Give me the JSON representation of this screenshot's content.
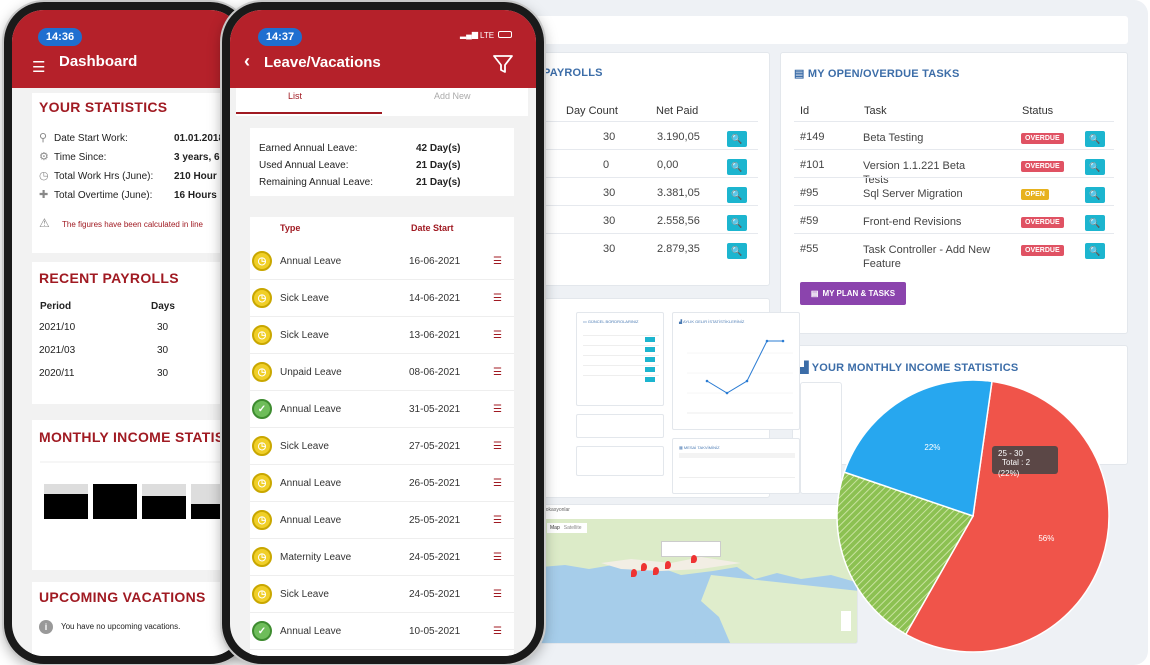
{
  "desktop": {
    "payrolls": {
      "title": "PAYROLLS",
      "headers": [
        "Day Count",
        "Net Paid"
      ],
      "rows": [
        {
          "days": "30",
          "paid": "3.190,05"
        },
        {
          "days": "0",
          "paid": "0,00"
        },
        {
          "days": "30",
          "paid": "3.381,05"
        },
        {
          "days": "30",
          "paid": "2.558,56"
        },
        {
          "days": "30",
          "paid": "2.879,35"
        }
      ]
    },
    "tasks": {
      "title": "MY OPEN/OVERDUE TASKS",
      "headers": [
        "Id",
        "Task",
        "Status"
      ],
      "rows": [
        {
          "id": "#149",
          "task": "Beta Testing",
          "status": "OVERDUE"
        },
        {
          "id": "#101",
          "task": "Version 1.1.221 Beta Tests",
          "status": "OVERDUE"
        },
        {
          "id": "#95",
          "task": "Sql Server Migration",
          "status": "OPEN"
        },
        {
          "id": "#59",
          "task": "Front-end Revisions",
          "status": "OVERDUE"
        },
        {
          "id": "#55",
          "task": "Task Controller - Add New Feature",
          "status": "OVERDUE"
        }
      ],
      "plan_button": "MY PLAN & TASKS"
    },
    "income": {
      "title": "YOUR MONTHLY INCOME STATISTICS",
      "tooltip_range": "25 - 30",
      "tooltip_total": "Total : 2",
      "tooltip_pct": "(22%)"
    },
    "map_label": "Lokasyonlar",
    "map_tabs": [
      "Map",
      "Satellite"
    ],
    "colors": {
      "accent": "#3c6da8",
      "zoom": "#1cb5cf",
      "overdue": "#e05263",
      "open": "#e7b21e",
      "plan": "#8b44ad"
    }
  },
  "chart_data": {
    "type": "pie",
    "title": "",
    "slices": [
      {
        "label": "56%",
        "value": 56,
        "color": "#f0544a"
      },
      {
        "label": "",
        "value": 22,
        "color": "#8cc152"
      },
      {
        "label": "22%",
        "value": 22,
        "color": "#27a7ef"
      }
    ]
  },
  "phone1": {
    "time": "14:36",
    "title": "Dashboard",
    "stats_title": "YOUR STATISTICS",
    "stats": [
      {
        "label": "Date Start Work:",
        "value": "01.01.2018"
      },
      {
        "label": "Time Since:",
        "value": "3 years, 6"
      },
      {
        "label": "Total Work Hrs (June):",
        "value": "210 Hour"
      },
      {
        "label": "Total Overtime (June):",
        "value": "16 Hours"
      }
    ],
    "note": "The figures have been calculated in line",
    "payrolls_title": "RECENT PAYROLLS",
    "payroll_headers": [
      "Period",
      "Days"
    ],
    "payrolls": [
      {
        "period": "2021/10",
        "days": "30"
      },
      {
        "period": "2021/03",
        "days": "30"
      },
      {
        "period": "2020/11",
        "days": "30"
      }
    ],
    "income_title": "MONTHLY INCOME STATIS",
    "vacations_title": "UPCOMING VACATIONS",
    "vacations_note": "You have no upcoming vacations."
  },
  "phone2": {
    "time": "14:37",
    "network": "LTE",
    "title": "Leave/Vacations",
    "tabs": [
      "List",
      "Add New"
    ],
    "summary": [
      {
        "label": "Earned Annual Leave:",
        "value": "42 Day(s)"
      },
      {
        "label": "Used Annual Leave:",
        "value": "21 Day(s)"
      },
      {
        "label": "Remaining Annual Leave:",
        "value": "21 Day(s)"
      }
    ],
    "headers": [
      "Type",
      "Date Start"
    ],
    "leaves": [
      {
        "type": "Annual Leave",
        "date": "16-06-2021",
        "status": "pending"
      },
      {
        "type": "Sick Leave",
        "date": "14-06-2021",
        "status": "pending"
      },
      {
        "type": "Sick Leave",
        "date": "13-06-2021",
        "status": "pending"
      },
      {
        "type": "Unpaid Leave",
        "date": "08-06-2021",
        "status": "pending"
      },
      {
        "type": "Annual Leave",
        "date": "31-05-2021",
        "status": "approved"
      },
      {
        "type": "Sick Leave",
        "date": "27-05-2021",
        "status": "pending"
      },
      {
        "type": "Annual Leave",
        "date": "26-05-2021",
        "status": "pending"
      },
      {
        "type": "Annual Leave",
        "date": "25-05-2021",
        "status": "pending"
      },
      {
        "type": "Maternity Leave",
        "date": "24-05-2021",
        "status": "pending"
      },
      {
        "type": "Sick Leave",
        "date": "24-05-2021",
        "status": "pending"
      },
      {
        "type": "Annual Leave",
        "date": "10-05-2021",
        "status": "approved"
      }
    ]
  }
}
